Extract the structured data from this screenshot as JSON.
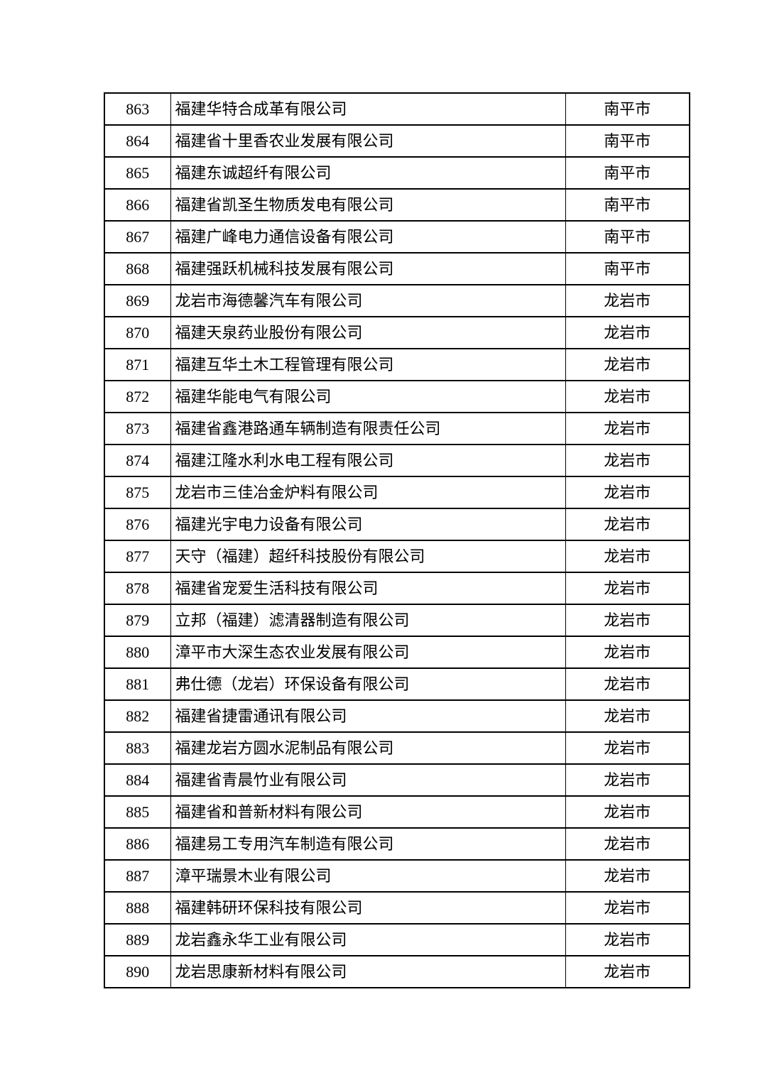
{
  "page": {
    "background_color": "#ffffff",
    "text_color": "#000000",
    "border_color": "#000000"
  },
  "table": {
    "rows": [
      {
        "no": "863",
        "company": "福建华特合成革有限公司",
        "city": "南平市"
      },
      {
        "no": "864",
        "company": "福建省十里香农业发展有限公司",
        "city": "南平市"
      },
      {
        "no": "865",
        "company": "福建东诚超纤有限公司",
        "city": "南平市"
      },
      {
        "no": "866",
        "company": "福建省凯圣生物质发电有限公司",
        "city": "南平市"
      },
      {
        "no": "867",
        "company": "福建广峰电力通信设备有限公司",
        "city": "南平市"
      },
      {
        "no": "868",
        "company": "福建强跃机械科技发展有限公司",
        "city": "南平市"
      },
      {
        "no": "869",
        "company": "龙岩市海德馨汽车有限公司",
        "city": "龙岩市"
      },
      {
        "no": "870",
        "company": "福建天泉药业股份有限公司",
        "city": "龙岩市"
      },
      {
        "no": "871",
        "company": "福建互华土木工程管理有限公司",
        "city": "龙岩市"
      },
      {
        "no": "872",
        "company": "福建华能电气有限公司",
        "city": "龙岩市"
      },
      {
        "no": "873",
        "company": "福建省鑫港路通车辆制造有限责任公司",
        "city": "龙岩市"
      },
      {
        "no": "874",
        "company": "福建江隆水利水电工程有限公司",
        "city": "龙岩市"
      },
      {
        "no": "875",
        "company": "龙岩市三佳冶金炉料有限公司",
        "city": "龙岩市"
      },
      {
        "no": "876",
        "company": "福建光宇电力设备有限公司",
        "city": "龙岩市"
      },
      {
        "no": "877",
        "company": "天守（福建）超纤科技股份有限公司",
        "city": "龙岩市"
      },
      {
        "no": "878",
        "company": "福建省宠爱生活科技有限公司",
        "city": "龙岩市"
      },
      {
        "no": "879",
        "company": "立邦（福建）滤清器制造有限公司",
        "city": "龙岩市"
      },
      {
        "no": "880",
        "company": "漳平市大深生态农业发展有限公司",
        "city": "龙岩市"
      },
      {
        "no": "881",
        "company": "弗仕德（龙岩）环保设备有限公司",
        "city": "龙岩市"
      },
      {
        "no": "882",
        "company": "福建省捷雷通讯有限公司",
        "city": "龙岩市"
      },
      {
        "no": "883",
        "company": "福建龙岩方圆水泥制品有限公司",
        "city": "龙岩市"
      },
      {
        "no": "884",
        "company": "福建省青晨竹业有限公司",
        "city": "龙岩市"
      },
      {
        "no": "885",
        "company": "福建省和普新材料有限公司",
        "city": "龙岩市"
      },
      {
        "no": "886",
        "company": "福建易工专用汽车制造有限公司",
        "city": "龙岩市"
      },
      {
        "no": "887",
        "company": "漳平瑞景木业有限公司",
        "city": "龙岩市"
      },
      {
        "no": "888",
        "company": "福建韩研环保科技有限公司",
        "city": "龙岩市"
      },
      {
        "no": "889",
        "company": "龙岩鑫永华工业有限公司",
        "city": "龙岩市"
      },
      {
        "no": "890",
        "company": "龙岩思康新材料有限公司",
        "city": "龙岩市"
      }
    ]
  }
}
